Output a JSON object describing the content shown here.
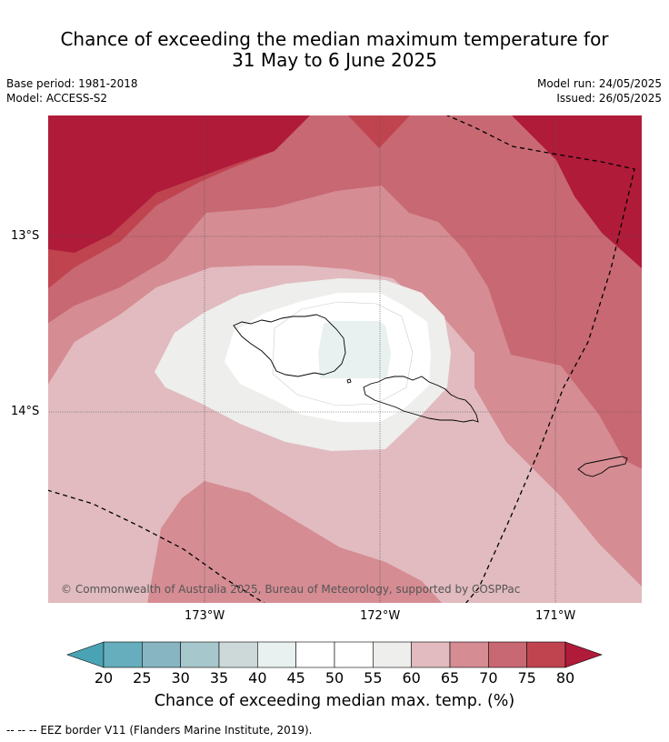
{
  "header": {
    "title_line1": "Chance of exceeding the median maximum temperature for",
    "title_line2": "31 May to 6 June 2025",
    "base_period": "Base period: 1981-2018",
    "model": "Model: ACCESS-S2",
    "model_run": "Model run: 24/05/2025",
    "issued": "Issued: 26/05/2025"
  },
  "map": {
    "lat_labels": [
      "13°S",
      "14°S"
    ],
    "lon_labels": [
      "173°W",
      "172°W",
      "171°W"
    ],
    "copyright": "© Commonwealth of Australia 2025, Bureau of Meteorology, supported by COSPPac"
  },
  "colorbar": {
    "ticks": [
      "20",
      "25",
      "30",
      "35",
      "40",
      "45",
      "50",
      "55",
      "60",
      "65",
      "70",
      "75",
      "80"
    ],
    "colors": [
      "#66aebe",
      "#87b5c2",
      "#a6c7cb",
      "#cdd9d9",
      "#e9f0f0",
      "#ffffff",
      "#ffffff",
      "#eeeeec",
      "#e1bbbf",
      "#d58c93",
      "#c86873",
      "#c0444f"
    ],
    "under_color": "#4aa3b5",
    "over_color": "#b01b3a",
    "title": "Chance of exceeding median max. temp. (%)"
  },
  "footnote": "--  --  -- EEZ border V11 (Flanders Marine Institute, 2019)."
}
